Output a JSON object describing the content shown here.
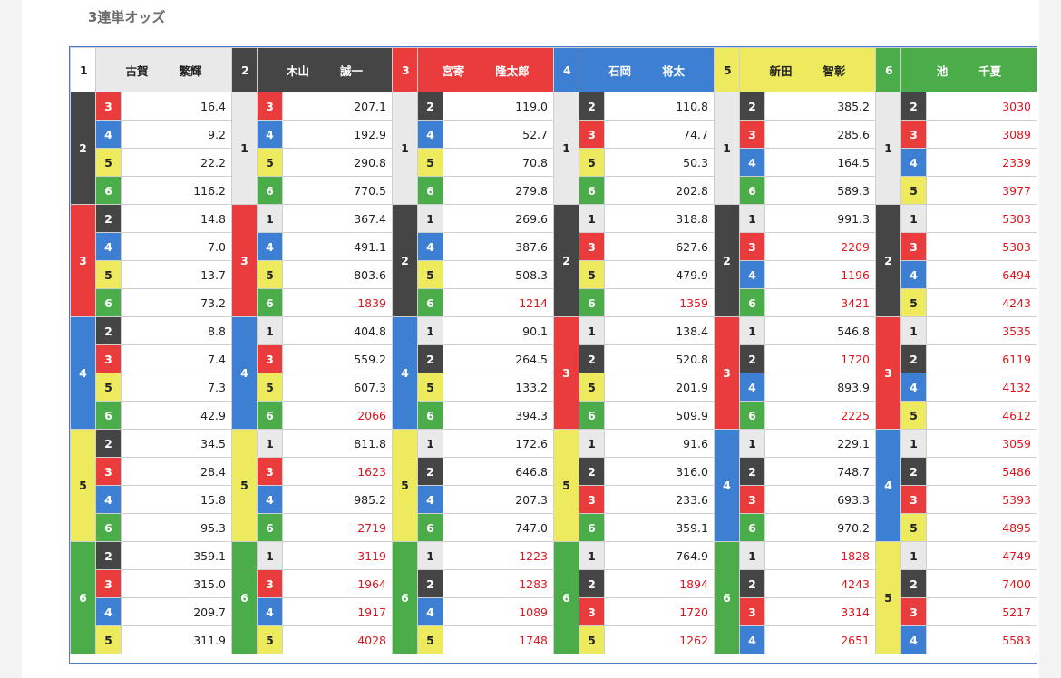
{
  "page": {
    "title": "3連単オッズ"
  },
  "colors": {
    "c1": "#e9e9e9",
    "c2": "#454545",
    "c3": "#ea3c3c",
    "c4": "#3d7fd2",
    "c5": "#eeea5e",
    "c6": "#4aad4a",
    "high_odds": "#e0141e"
  },
  "racers": [
    {
      "num": "1",
      "surname": "古賀",
      "given": "繁輝"
    },
    {
      "num": "2",
      "surname": "木山",
      "given": "誠一"
    },
    {
      "num": "3",
      "surname": "宮寄",
      "given": "隆太郎"
    },
    {
      "num": "4",
      "surname": "石岡",
      "given": "将太"
    },
    {
      "num": "5",
      "surname": "新田",
      "given": "智彰"
    },
    {
      "num": "6",
      "surname": "池",
      "given": "千夏"
    }
  ],
  "odds": [
    [
      {
        "second": "2",
        "rows": [
          {
            "third": "3",
            "odds": "16.4"
          },
          {
            "third": "4",
            "odds": "9.2"
          },
          {
            "third": "5",
            "odds": "22.2"
          },
          {
            "third": "6",
            "odds": "116.2"
          }
        ]
      },
      {
        "second": "3",
        "rows": [
          {
            "third": "2",
            "odds": "14.8"
          },
          {
            "third": "4",
            "odds": "7.0"
          },
          {
            "third": "5",
            "odds": "13.7"
          },
          {
            "third": "6",
            "odds": "73.2"
          }
        ]
      },
      {
        "second": "4",
        "rows": [
          {
            "third": "2",
            "odds": "8.8"
          },
          {
            "third": "3",
            "odds": "7.4"
          },
          {
            "third": "5",
            "odds": "7.3"
          },
          {
            "third": "6",
            "odds": "42.9"
          }
        ]
      },
      {
        "second": "5",
        "rows": [
          {
            "third": "2",
            "odds": "34.5"
          },
          {
            "third": "3",
            "odds": "28.4"
          },
          {
            "third": "4",
            "odds": "15.8"
          },
          {
            "third": "6",
            "odds": "95.3"
          }
        ]
      },
      {
        "second": "6",
        "rows": [
          {
            "third": "2",
            "odds": "359.1"
          },
          {
            "third": "3",
            "odds": "315.0"
          },
          {
            "third": "4",
            "odds": "209.7"
          },
          {
            "third": "5",
            "odds": "311.9"
          }
        ]
      }
    ],
    [
      {
        "second": "1",
        "rows": [
          {
            "third": "3",
            "odds": "207.1"
          },
          {
            "third": "4",
            "odds": "192.9"
          },
          {
            "third": "5",
            "odds": "290.8"
          },
          {
            "third": "6",
            "odds": "770.5"
          }
        ]
      },
      {
        "second": "3",
        "rows": [
          {
            "third": "1",
            "odds": "367.4"
          },
          {
            "third": "4",
            "odds": "491.1"
          },
          {
            "third": "5",
            "odds": "803.6"
          },
          {
            "third": "6",
            "odds": "1839"
          }
        ]
      },
      {
        "second": "4",
        "rows": [
          {
            "third": "1",
            "odds": "404.8"
          },
          {
            "third": "3",
            "odds": "559.2"
          },
          {
            "third": "5",
            "odds": "607.3"
          },
          {
            "third": "6",
            "odds": "2066"
          }
        ]
      },
      {
        "second": "5",
        "rows": [
          {
            "third": "1",
            "odds": "811.8"
          },
          {
            "third": "3",
            "odds": "1623"
          },
          {
            "third": "4",
            "odds": "985.2"
          },
          {
            "third": "6",
            "odds": "2719"
          }
        ]
      },
      {
        "second": "6",
        "rows": [
          {
            "third": "1",
            "odds": "3119"
          },
          {
            "third": "3",
            "odds": "1964"
          },
          {
            "third": "4",
            "odds": "1917"
          },
          {
            "third": "5",
            "odds": "4028"
          }
        ]
      }
    ],
    [
      {
        "second": "1",
        "rows": [
          {
            "third": "2",
            "odds": "119.0"
          },
          {
            "third": "4",
            "odds": "52.7"
          },
          {
            "third": "5",
            "odds": "70.8"
          },
          {
            "third": "6",
            "odds": "279.8"
          }
        ]
      },
      {
        "second": "2",
        "rows": [
          {
            "third": "1",
            "odds": "269.6"
          },
          {
            "third": "4",
            "odds": "387.6"
          },
          {
            "third": "5",
            "odds": "508.3"
          },
          {
            "third": "6",
            "odds": "1214"
          }
        ]
      },
      {
        "second": "4",
        "rows": [
          {
            "third": "1",
            "odds": "90.1"
          },
          {
            "third": "2",
            "odds": "264.5"
          },
          {
            "third": "5",
            "odds": "133.2"
          },
          {
            "third": "6",
            "odds": "394.3"
          }
        ]
      },
      {
        "second": "5",
        "rows": [
          {
            "third": "1",
            "odds": "172.6"
          },
          {
            "third": "2",
            "odds": "646.8"
          },
          {
            "third": "4",
            "odds": "207.3"
          },
          {
            "third": "6",
            "odds": "747.0"
          }
        ]
      },
      {
        "second": "6",
        "rows": [
          {
            "third": "1",
            "odds": "1223"
          },
          {
            "third": "2",
            "odds": "1283"
          },
          {
            "third": "4",
            "odds": "1089"
          },
          {
            "third": "5",
            "odds": "1748"
          }
        ]
      }
    ],
    [
      {
        "second": "1",
        "rows": [
          {
            "third": "2",
            "odds": "110.8"
          },
          {
            "third": "3",
            "odds": "74.7"
          },
          {
            "third": "5",
            "odds": "50.3"
          },
          {
            "third": "6",
            "odds": "202.8"
          }
        ]
      },
      {
        "second": "2",
        "rows": [
          {
            "third": "1",
            "odds": "318.8"
          },
          {
            "third": "3",
            "odds": "627.6"
          },
          {
            "third": "5",
            "odds": "479.9"
          },
          {
            "third": "6",
            "odds": "1359"
          }
        ]
      },
      {
        "second": "3",
        "rows": [
          {
            "third": "1",
            "odds": "138.4"
          },
          {
            "third": "2",
            "odds": "520.8"
          },
          {
            "third": "5",
            "odds": "201.9"
          },
          {
            "third": "6",
            "odds": "509.9"
          }
        ]
      },
      {
        "second": "5",
        "rows": [
          {
            "third": "1",
            "odds": "91.6"
          },
          {
            "third": "2",
            "odds": "316.0"
          },
          {
            "third": "3",
            "odds": "233.6"
          },
          {
            "third": "6",
            "odds": "359.1"
          }
        ]
      },
      {
        "second": "6",
        "rows": [
          {
            "third": "1",
            "odds": "764.9"
          },
          {
            "third": "2",
            "odds": "1894"
          },
          {
            "third": "3",
            "odds": "1720"
          },
          {
            "third": "5",
            "odds": "1262"
          }
        ]
      }
    ],
    [
      {
        "second": "1",
        "rows": [
          {
            "third": "2",
            "odds": "385.2"
          },
          {
            "third": "3",
            "odds": "285.6"
          },
          {
            "third": "4",
            "odds": "164.5"
          },
          {
            "third": "6",
            "odds": "589.3"
          }
        ]
      },
      {
        "second": "2",
        "rows": [
          {
            "third": "1",
            "odds": "991.3"
          },
          {
            "third": "3",
            "odds": "2209"
          },
          {
            "third": "4",
            "odds": "1196"
          },
          {
            "third": "6",
            "odds": "3421"
          }
        ]
      },
      {
        "second": "3",
        "rows": [
          {
            "third": "1",
            "odds": "546.8"
          },
          {
            "third": "2",
            "odds": "1720"
          },
          {
            "third": "4",
            "odds": "893.9"
          },
          {
            "third": "6",
            "odds": "2225"
          }
        ]
      },
      {
        "second": "4",
        "rows": [
          {
            "third": "1",
            "odds": "229.1"
          },
          {
            "third": "2",
            "odds": "748.7"
          },
          {
            "third": "3",
            "odds": "693.3"
          },
          {
            "third": "6",
            "odds": "970.2"
          }
        ]
      },
      {
        "second": "6",
        "rows": [
          {
            "third": "1",
            "odds": "1828"
          },
          {
            "third": "2",
            "odds": "4243"
          },
          {
            "third": "3",
            "odds": "3314"
          },
          {
            "third": "4",
            "odds": "2651"
          }
        ]
      }
    ],
    [
      {
        "second": "1",
        "rows": [
          {
            "third": "2",
            "odds": "3030"
          },
          {
            "third": "3",
            "odds": "3089"
          },
          {
            "third": "4",
            "odds": "2339"
          },
          {
            "third": "5",
            "odds": "3977"
          }
        ]
      },
      {
        "second": "2",
        "rows": [
          {
            "third": "1",
            "odds": "5303"
          },
          {
            "third": "3",
            "odds": "5303"
          },
          {
            "third": "4",
            "odds": "6494"
          },
          {
            "third": "5",
            "odds": "4243"
          }
        ]
      },
      {
        "second": "3",
        "rows": [
          {
            "third": "1",
            "odds": "3535"
          },
          {
            "third": "2",
            "odds": "6119"
          },
          {
            "third": "4",
            "odds": "4132"
          },
          {
            "third": "5",
            "odds": "4612"
          }
        ]
      },
      {
        "second": "4",
        "rows": [
          {
            "third": "1",
            "odds": "3059"
          },
          {
            "third": "2",
            "odds": "5486"
          },
          {
            "third": "3",
            "odds": "5393"
          },
          {
            "third": "5",
            "odds": "4895"
          }
        ]
      },
      {
        "second": "5",
        "rows": [
          {
            "third": "1",
            "odds": "4749"
          },
          {
            "third": "2",
            "odds": "7400"
          },
          {
            "third": "3",
            "odds": "5217"
          },
          {
            "third": "4",
            "odds": "5583"
          }
        ]
      }
    ]
  ]
}
